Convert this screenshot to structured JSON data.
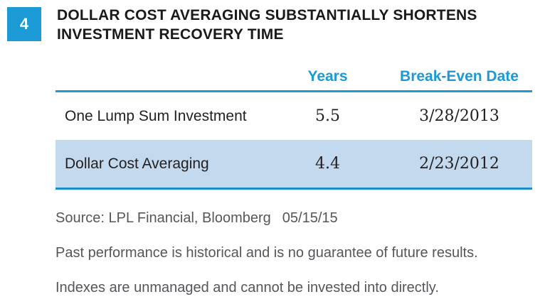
{
  "colors": {
    "accent": "#1C9AD6",
    "row_border": "#1B8FC6",
    "row_highlight": "#C3D9EE",
    "title_text": "#1A1A1A",
    "body_text": "#231F20",
    "muted_text": "#55565A"
  },
  "figure": {
    "number": "4",
    "title": "DOLLAR COST AVERAGING SUBSTANTIALLY SHORTENS INVESTMENT RECOVERY TIME"
  },
  "chart_data": {
    "type": "table",
    "title": "Dollar Cost Averaging Substantially Shortens Investment Recovery Time",
    "columns": [
      "",
      "Years",
      "Break-Even Date"
    ],
    "rows": [
      {
        "label": "One Lump Sum Investment",
        "years": "5.5",
        "break_even_date": "3/28/2013",
        "highlighted": false
      },
      {
        "label": "Dollar Cost Averaging",
        "years": "4.4",
        "break_even_date": "2/23/2012",
        "highlighted": true
      }
    ]
  },
  "footer": {
    "source": "Source: LPL Financial, Bloomberg",
    "source_date": "05/15/15",
    "note1": "Past performance is historical and is no guarantee of future results.",
    "note2": "Indexes are unmanaged and cannot be invested into directly."
  }
}
